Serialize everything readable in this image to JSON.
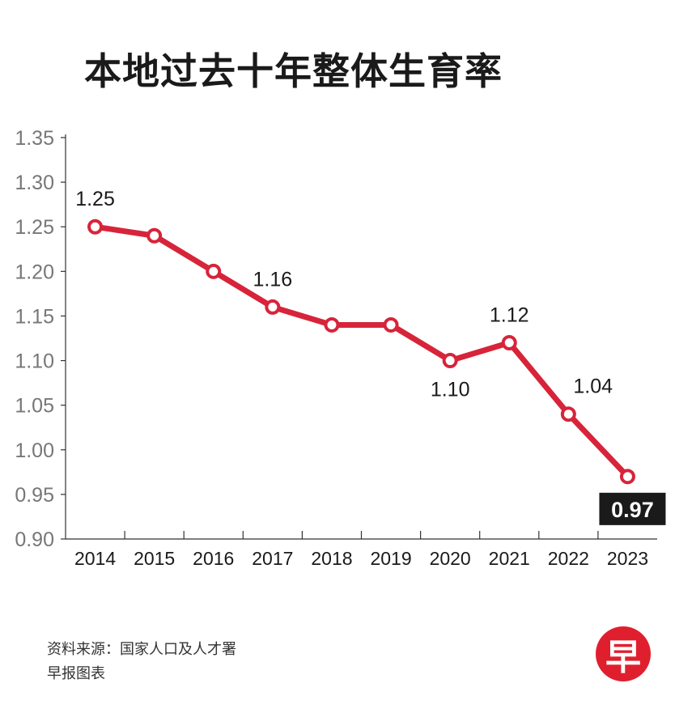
{
  "chart_data": {
    "type": "line",
    "title": "本地过去十年整体生育率",
    "categories": [
      "2014",
      "2015",
      "2016",
      "2017",
      "2018",
      "2019",
      "2020",
      "2021",
      "2022",
      "2023"
    ],
    "values": [
      1.25,
      1.24,
      1.2,
      1.16,
      1.14,
      1.14,
      1.1,
      1.12,
      1.04,
      0.97
    ],
    "ylim": [
      0.9,
      1.35
    ],
    "yticks": [
      "0.90",
      "0.95",
      "1.00",
      "1.05",
      "1.10",
      "1.15",
      "1.20",
      "1.25",
      "1.30",
      "1.35"
    ],
    "data_labels": [
      {
        "index": 0,
        "text": "1.25",
        "position": "above"
      },
      {
        "index": 3,
        "text": "1.16",
        "position": "above"
      },
      {
        "index": 6,
        "text": "1.10",
        "position": "below"
      },
      {
        "index": 7,
        "text": "1.12",
        "position": "above"
      },
      {
        "index": 8,
        "text": "1.04",
        "position": "right"
      },
      {
        "index": 9,
        "text": "0.97",
        "position": "below",
        "highlight": true
      }
    ],
    "line_color": "#d7243a",
    "grid": false
  },
  "footer": {
    "source": "资料来源：国家人口及人才署",
    "credit": "早报图表"
  },
  "logo": {
    "text": "早",
    "color": "#e01f2e"
  }
}
